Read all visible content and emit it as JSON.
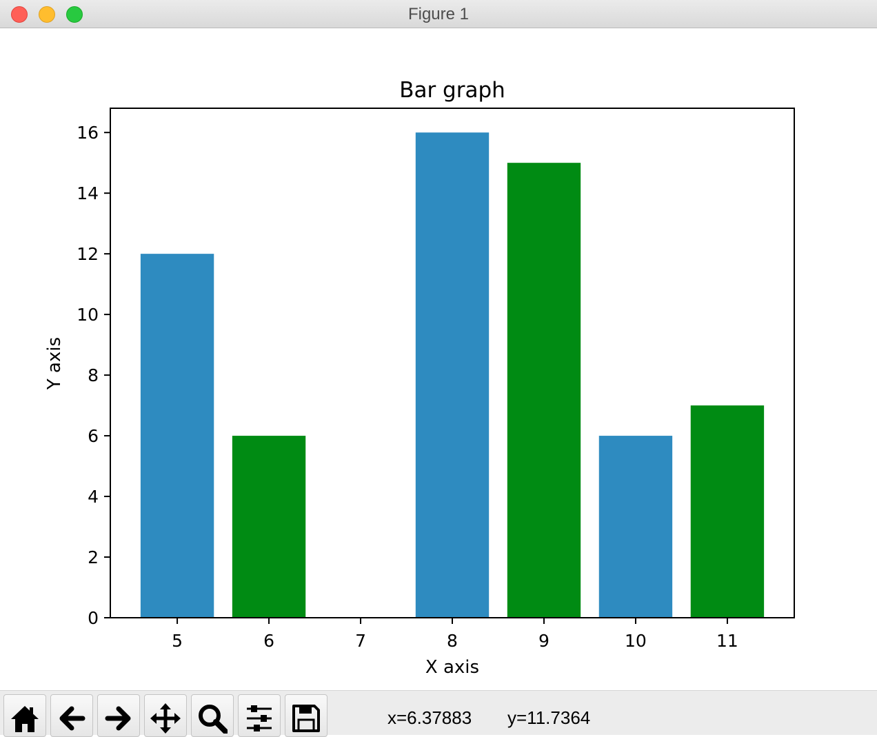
{
  "window": {
    "title": "Figure 1"
  },
  "chart_data": {
    "type": "bar",
    "title": "Bar graph",
    "xlabel": "X axis",
    "ylabel": "Y axis",
    "x": [
      5,
      6,
      8,
      9,
      10,
      11
    ],
    "values": [
      12,
      6,
      16,
      15,
      6,
      7
    ],
    "bar_colors": [
      "#2e8bc0",
      "#008b13",
      "#2e8bc0",
      "#008b13",
      "#2e8bc0",
      "#008b13"
    ],
    "xlim": [
      4.27,
      11.73
    ],
    "ylim": [
      0,
      16.8
    ],
    "xticks": [
      5,
      6,
      7,
      8,
      9,
      10,
      11
    ],
    "yticks": [
      0,
      2,
      4,
      6,
      8,
      10,
      12,
      14,
      16
    ],
    "grid": false
  },
  "toolbar": {
    "buttons": [
      {
        "name": "home-icon"
      },
      {
        "name": "back-icon"
      },
      {
        "name": "forward-icon"
      },
      {
        "name": "pan-icon"
      },
      {
        "name": "zoom-icon"
      },
      {
        "name": "configure-subplots-icon"
      },
      {
        "name": "save-icon"
      }
    ],
    "coord_x": "x=6.37883",
    "coord_y": "y=11.7364"
  }
}
